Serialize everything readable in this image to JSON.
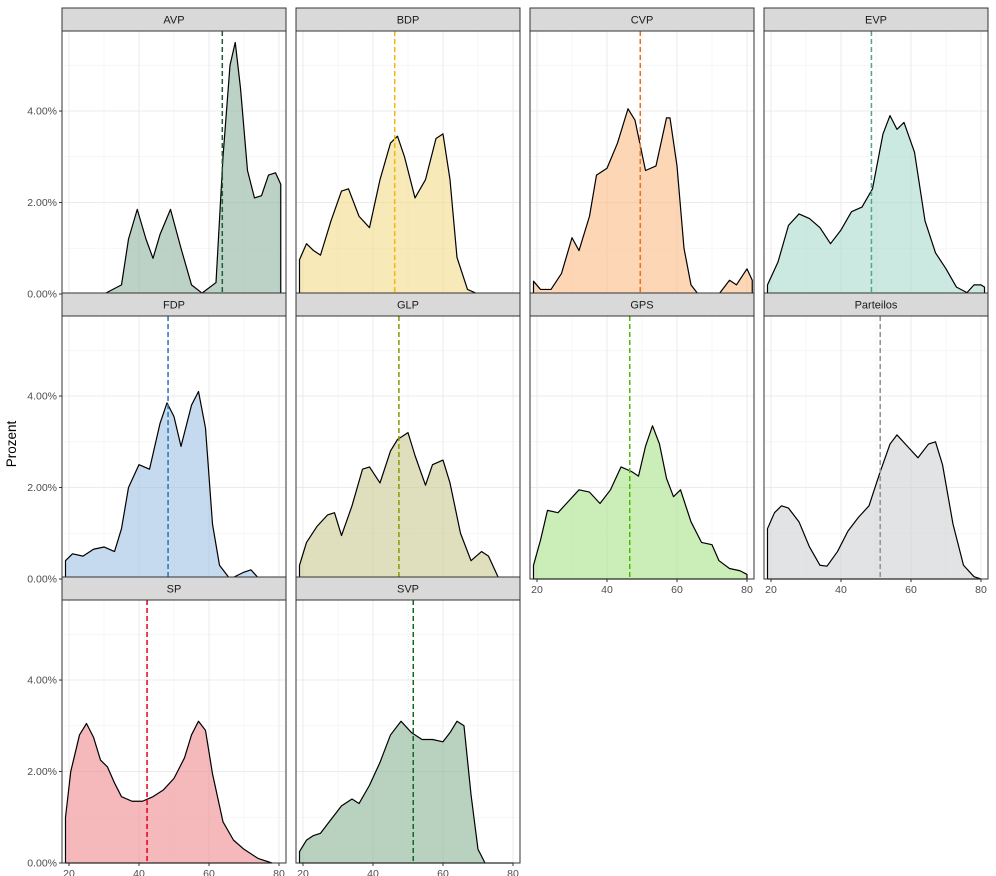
{
  "chart_data": {
    "type": "area",
    "subtype": "density-facets",
    "ylabel": "Prozent",
    "xlabel": "",
    "xlim": [
      18,
      82
    ],
    "ylim": [
      0,
      0.0575
    ],
    "x_ticks": [
      20,
      40,
      60,
      80
    ],
    "x_tick_labels": [
      "20",
      "40",
      "60",
      "80"
    ],
    "y_ticks": [
      0,
      0.02,
      0.04
    ],
    "y_tick_labels": [
      "0.00%",
      "2.00%",
      "4.00%"
    ],
    "grid": true,
    "legend": "none",
    "facets": [
      {
        "name": "AVP",
        "color": "#8FB4A0",
        "vline_color": "#1F5C3A",
        "mean": 63.8,
        "points": [
          [
            20,
            0
          ],
          [
            30,
            0
          ],
          [
            35,
            0.002
          ],
          [
            37,
            0.012
          ],
          [
            39.5,
            0.0185
          ],
          [
            42,
            0.012
          ],
          [
            44,
            0.0078
          ],
          [
            46,
            0.013
          ],
          [
            49,
            0.0185
          ],
          [
            52,
            0.01
          ],
          [
            55,
            0.002
          ],
          [
            58,
            0.0002
          ],
          [
            62,
            0.0025
          ],
          [
            64,
            0.03
          ],
          [
            66,
            0.05
          ],
          [
            67.5,
            0.055
          ],
          [
            69,
            0.045
          ],
          [
            71,
            0.027
          ],
          [
            73,
            0.021
          ],
          [
            75,
            0.0215
          ],
          [
            77,
            0.026
          ],
          [
            79,
            0.0265
          ],
          [
            80.5,
            0.024
          ]
        ]
      },
      {
        "name": "BDP",
        "color": "#F3DB88",
        "vline_color": "#F5B800",
        "mean": 46.2,
        "points": [
          [
            19,
            0.0075
          ],
          [
            21,
            0.011
          ],
          [
            23,
            0.0095
          ],
          [
            25,
            0.0085
          ],
          [
            28,
            0.016
          ],
          [
            31,
            0.0225
          ],
          [
            33,
            0.023
          ],
          [
            36,
            0.017
          ],
          [
            39,
            0.0145
          ],
          [
            42,
            0.025
          ],
          [
            45,
            0.033
          ],
          [
            47,
            0.0345
          ],
          [
            49,
            0.03
          ],
          [
            52,
            0.021
          ],
          [
            55,
            0.025
          ],
          [
            58,
            0.034
          ],
          [
            60,
            0.035
          ],
          [
            62,
            0.025
          ],
          [
            64,
            0.008
          ],
          [
            67,
            0.001
          ],
          [
            70,
            0
          ],
          [
            80,
            0
          ]
        ]
      },
      {
        "name": "CVP",
        "color": "#FBBA86",
        "vline_color": "#E8711A",
        "mean": 49.5,
        "points": [
          [
            19,
            0.0028
          ],
          [
            21,
            0.001
          ],
          [
            24,
            0.001
          ],
          [
            27,
            0.0045
          ],
          [
            30,
            0.0123
          ],
          [
            32,
            0.0095
          ],
          [
            35,
            0.017
          ],
          [
            37,
            0.026
          ],
          [
            40,
            0.0275
          ],
          [
            43,
            0.033
          ],
          [
            46,
            0.0405
          ],
          [
            48,
            0.038
          ],
          [
            51,
            0.027
          ],
          [
            54,
            0.028
          ],
          [
            57,
            0.0385
          ],
          [
            58,
            0.0385
          ],
          [
            60,
            0.028
          ],
          [
            62,
            0.01
          ],
          [
            64,
            0.002
          ],
          [
            66,
            0
          ],
          [
            72,
            0
          ],
          [
            75,
            0.003
          ],
          [
            77,
            0.002
          ],
          [
            80,
            0.0055
          ],
          [
            81.5,
            0.003
          ]
        ]
      },
      {
        "name": "EVP",
        "color": "#A8D8CD",
        "vline_color": "#4FA58F",
        "mean": 48.7,
        "points": [
          [
            19,
            0.002
          ],
          [
            22,
            0.007
          ],
          [
            25,
            0.015
          ],
          [
            28,
            0.0175
          ],
          [
            31,
            0.0165
          ],
          [
            34,
            0.0145
          ],
          [
            37,
            0.011
          ],
          [
            40,
            0.014
          ],
          [
            43,
            0.018
          ],
          [
            46,
            0.019
          ],
          [
            49,
            0.023
          ],
          [
            52,
            0.035
          ],
          [
            54,
            0.039
          ],
          [
            56,
            0.036
          ],
          [
            58,
            0.0375
          ],
          [
            61,
            0.031
          ],
          [
            64,
            0.016
          ],
          [
            67,
            0.009
          ],
          [
            70,
            0.0055
          ],
          [
            73,
            0.0015
          ],
          [
            76,
            0.0003
          ],
          [
            78,
            0.002
          ],
          [
            80,
            0.002
          ],
          [
            81,
            0.0015
          ]
        ]
      },
      {
        "name": "FDP",
        "color": "#9EC1E5",
        "vline_color": "#2673BB",
        "mean": 48.3,
        "points": [
          [
            19,
            0.004
          ],
          [
            21,
            0.0055
          ],
          [
            24,
            0.005
          ],
          [
            27,
            0.0065
          ],
          [
            30,
            0.007
          ],
          [
            33,
            0.006
          ],
          [
            35,
            0.011
          ],
          [
            37,
            0.02
          ],
          [
            40,
            0.025
          ],
          [
            43,
            0.024
          ],
          [
            46,
            0.034
          ],
          [
            48,
            0.0385
          ],
          [
            50,
            0.0355
          ],
          [
            52,
            0.029
          ],
          [
            55,
            0.038
          ],
          [
            57,
            0.041
          ],
          [
            59,
            0.033
          ],
          [
            61,
            0.012
          ],
          [
            63,
            0.003
          ],
          [
            66,
            0
          ],
          [
            70,
            0.0015
          ],
          [
            72,
            0.002
          ],
          [
            74,
            0.0003
          ],
          [
            78,
            0
          ],
          [
            80,
            0
          ]
        ]
      },
      {
        "name": "GLP",
        "color": "#C9C992",
        "vline_color": "#859B00",
        "mean": 47.4,
        "points": [
          [
            19,
            0.003
          ],
          [
            21,
            0.008
          ],
          [
            24,
            0.0115
          ],
          [
            27,
            0.014
          ],
          [
            29,
            0.0145
          ],
          [
            31,
            0.0095
          ],
          [
            34,
            0.016
          ],
          [
            37,
            0.024
          ],
          [
            39,
            0.0245
          ],
          [
            42,
            0.021
          ],
          [
            45,
            0.028
          ],
          [
            47,
            0.0305
          ],
          [
            50,
            0.032
          ],
          [
            52,
            0.027
          ],
          [
            55,
            0.0205
          ],
          [
            57,
            0.025
          ],
          [
            60,
            0.026
          ],
          [
            62,
            0.021
          ],
          [
            65,
            0.01
          ],
          [
            68,
            0.004
          ],
          [
            71,
            0.006
          ],
          [
            73,
            0.005
          ],
          [
            76,
            0
          ],
          [
            80,
            0
          ]
        ]
      },
      {
        "name": "GPS",
        "color": "#A9E389",
        "vline_color": "#4FB800",
        "mean": 46.5,
        "points": [
          [
            19,
            0.003
          ],
          [
            21,
            0.0085
          ],
          [
            23,
            0.015
          ],
          [
            26,
            0.0145
          ],
          [
            29,
            0.017
          ],
          [
            32,
            0.0195
          ],
          [
            35,
            0.019
          ],
          [
            38,
            0.0165
          ],
          [
            41,
            0.0195
          ],
          [
            44,
            0.0245
          ],
          [
            47,
            0.0235
          ],
          [
            49,
            0.0225
          ],
          [
            51,
            0.029
          ],
          [
            53,
            0.0335
          ],
          [
            55,
            0.0295
          ],
          [
            57,
            0.022
          ],
          [
            59,
            0.018
          ],
          [
            61,
            0.0195
          ],
          [
            64,
            0.0125
          ],
          [
            67,
            0.008
          ],
          [
            70,
            0.0075
          ],
          [
            72,
            0.004
          ],
          [
            75,
            0.0023
          ],
          [
            78,
            0.0018
          ],
          [
            80,
            0.001
          ]
        ]
      },
      {
        "name": "Parteilos",
        "color": "#CFD0D2",
        "vline_color": "#8F8F8F",
        "mean": 51.2,
        "points": [
          [
            19,
            0.011
          ],
          [
            21,
            0.0145
          ],
          [
            23,
            0.016
          ],
          [
            25,
            0.0155
          ],
          [
            28,
            0.0125
          ],
          [
            31,
            0.007
          ],
          [
            34,
            0.003
          ],
          [
            36,
            0.0028
          ],
          [
            39,
            0.006
          ],
          [
            42,
            0.0105
          ],
          [
            45,
            0.0135
          ],
          [
            48,
            0.016
          ],
          [
            51,
            0.023
          ],
          [
            54,
            0.0295
          ],
          [
            56,
            0.0315
          ],
          [
            59,
            0.029
          ],
          [
            62,
            0.0265
          ],
          [
            65,
            0.0295
          ],
          [
            67,
            0.03
          ],
          [
            69,
            0.025
          ],
          [
            72,
            0.012
          ],
          [
            75,
            0.003
          ],
          [
            78,
            0.0005
          ],
          [
            80,
            0
          ]
        ]
      },
      {
        "name": "SP",
        "color": "#EE8A90",
        "vline_color": "#E2001A",
        "mean": 42.3,
        "points": [
          [
            19,
            0.01
          ],
          [
            20.5,
            0.02
          ],
          [
            23,
            0.028
          ],
          [
            25,
            0.0305
          ],
          [
            27,
            0.0275
          ],
          [
            29,
            0.0225
          ],
          [
            31,
            0.021
          ],
          [
            33,
            0.0175
          ],
          [
            35,
            0.0145
          ],
          [
            38,
            0.0135
          ],
          [
            41,
            0.0135
          ],
          [
            44,
            0.0145
          ],
          [
            47,
            0.016
          ],
          [
            50,
            0.0185
          ],
          [
            53,
            0.023
          ],
          [
            55,
            0.028
          ],
          [
            57,
            0.031
          ],
          [
            59,
            0.029
          ],
          [
            61,
            0.0195
          ],
          [
            64,
            0.009
          ],
          [
            67,
            0.005
          ],
          [
            70,
            0.003
          ],
          [
            74,
            0.001
          ],
          [
            78,
            0
          ]
        ]
      },
      {
        "name": "SVP",
        "color": "#8AB495",
        "vline_color": "#0E6B1E",
        "mean": 51.5,
        "points": [
          [
            19,
            0.0025
          ],
          [
            21,
            0.005
          ],
          [
            23,
            0.006
          ],
          [
            25,
            0.0065
          ],
          [
            28,
            0.0095
          ],
          [
            31,
            0.0125
          ],
          [
            34,
            0.014
          ],
          [
            36,
            0.013
          ],
          [
            39,
            0.017
          ],
          [
            42,
            0.022
          ],
          [
            45,
            0.028
          ],
          [
            48,
            0.031
          ],
          [
            51,
            0.0285
          ],
          [
            54,
            0.027
          ],
          [
            57,
            0.027
          ],
          [
            60,
            0.0265
          ],
          [
            62,
            0.0285
          ],
          [
            64,
            0.031
          ],
          [
            66,
            0.03
          ],
          [
            68,
            0.015
          ],
          [
            70,
            0.003
          ],
          [
            72,
            0
          ],
          [
            80,
            0
          ]
        ]
      }
    ]
  }
}
